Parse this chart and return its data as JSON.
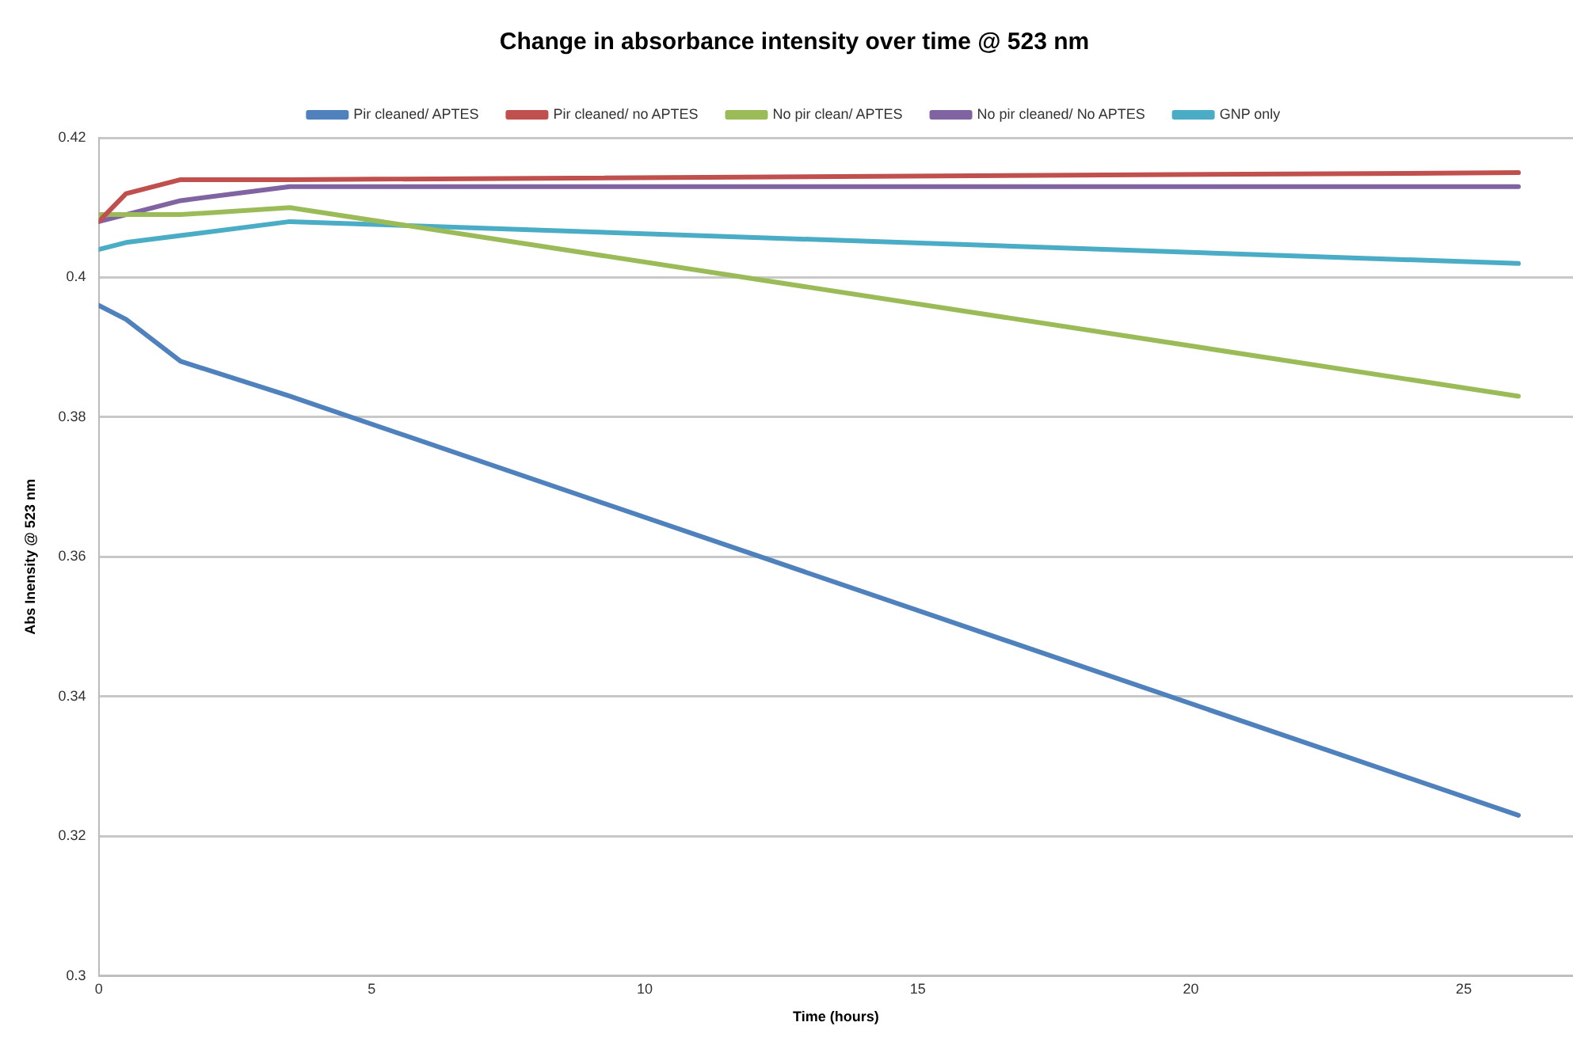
{
  "chart_data": {
    "type": "line",
    "title": "Change in absorbance intensity over time @ 523 nm",
    "xlabel": "Time (hours)",
    "ylabel": "Abs Inensity @ 523 nm",
    "x": [
      0,
      0.5,
      1.5,
      3.5,
      26
    ],
    "series": [
      {
        "name": "Pir cleaned/ APTES",
        "color": "#4f81bd",
        "values": [
          0.396,
          0.394,
          0.388,
          0.383,
          0.323
        ]
      },
      {
        "name": "Pir cleaned/ no APTES",
        "color": "#c0504d",
        "values": [
          0.408,
          0.412,
          0.414,
          0.414,
          0.415
        ]
      },
      {
        "name": "No pir clean/ APTES",
        "color": "#9bbb59",
        "values": [
          0.409,
          0.409,
          0.409,
          0.41,
          0.383
        ]
      },
      {
        "name": "No pir cleaned/ No APTES",
        "color": "#8064a2",
        "values": [
          0.408,
          0.409,
          0.411,
          0.413,
          0.413
        ]
      },
      {
        "name": "GNP only",
        "color": "#4bacc6",
        "values": [
          0.404,
          0.405,
          0.406,
          0.408,
          0.402
        ]
      }
    ],
    "xlim": [
      0,
      27
    ],
    "xticks": [
      0,
      5,
      10,
      15,
      20,
      25
    ],
    "ylim": [
      0.3,
      0.42
    ],
    "yticks": [
      0.3,
      0.32,
      0.34,
      0.36,
      0.38,
      0.4,
      0.42
    ],
    "grid": "y",
    "legend": "top",
    "marker": "none",
    "line_style": "solid"
  }
}
